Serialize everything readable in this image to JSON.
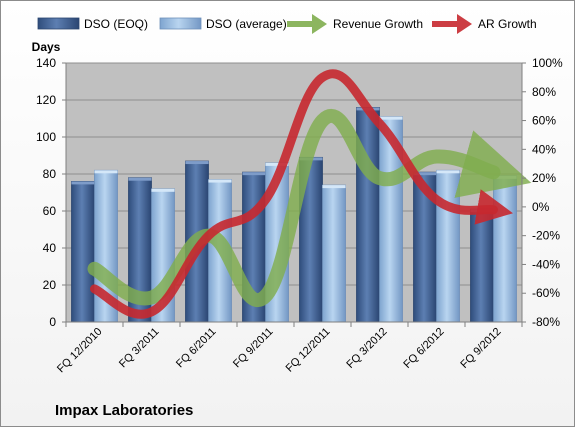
{
  "chart_data": {
    "type": "bar",
    "title": "Impax Laboratories",
    "ylabel": "Days",
    "y2label": "",
    "categories": [
      "FQ 12/2010",
      "FQ 3/2011",
      "FQ 6/2011",
      "FQ 9/2011",
      "FQ 12/2011",
      "FQ 3/2012",
      "FQ 6/2012",
      "FQ 9/2012"
    ],
    "ylim": [
      0,
      140
    ],
    "y_ticks": [
      0,
      20,
      40,
      60,
      80,
      100,
      120,
      140
    ],
    "y2lim": [
      -80,
      100
    ],
    "y2_ticks": [
      "-80%",
      "-60%",
      "-40%",
      "-20%",
      "0%",
      "20%",
      "40%",
      "60%",
      "80%",
      "100%"
    ],
    "y2_tick_values": [
      -80,
      -60,
      -40,
      -20,
      0,
      20,
      40,
      60,
      80,
      100
    ],
    "grid": "horizontal",
    "legend_position": "top",
    "series": [
      {
        "name": "DSO (EOQ)",
        "kind": "bar",
        "axis": "left",
        "color": "#4a6a9c",
        "values": [
          76,
          78,
          87,
          81,
          89,
          116,
          81,
          61
        ]
      },
      {
        "name": "DSO (average)",
        "kind": "bar",
        "axis": "left",
        "color": "#9cbfe4",
        "values": [
          82,
          72,
          77,
          86,
          74,
          111,
          82,
          79
        ]
      },
      {
        "name": "Revenue Growth",
        "kind": "line",
        "axis": "right",
        "color": "#80ad4e",
        "values": [
          -43,
          -63,
          -20,
          -62,
          60,
          20,
          35,
          24
        ]
      },
      {
        "name": "AR Growth",
        "kind": "line",
        "axis": "right",
        "color": "#c7282f",
        "values": [
          -57,
          -73,
          -20,
          5,
          90,
          58,
          5,
          -2
        ]
      }
    ]
  }
}
